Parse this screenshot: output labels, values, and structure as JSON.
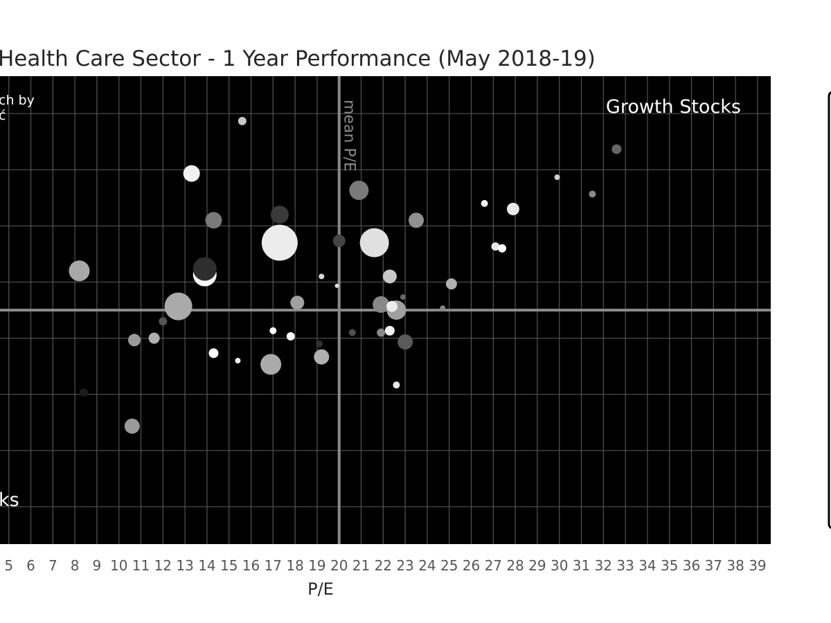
{
  "chart_data": {
    "type": "scatter",
    "title": "Health Care Sector - 1 Year Performance (May 2018-19)",
    "xlabel": "P/E",
    "ylabel": "",
    "xlim": [
      4.6,
      39.6
    ],
    "ylim": [
      -12.5,
      12.5
    ],
    "x_ticks": [
      "5",
      "6",
      "7",
      "8",
      "9",
      "10",
      "11",
      "12",
      "13",
      "14",
      "15",
      "16",
      "17",
      "18",
      "19",
      "20",
      "21",
      "22",
      "23",
      "24",
      "25",
      "26",
      "27",
      "28",
      "29",
      "30",
      "31",
      "32",
      "33",
      "34",
      "35",
      "36",
      "37",
      "38",
      "39"
    ],
    "grid": true,
    "background": "#000000",
    "grid_color": "#555555",
    "mean_line_color": "#8a8a8a",
    "mean_pe": 20.0,
    "mean_y": 0.0,
    "mean_label": "mean P/E",
    "annotations": {
      "top_right": "Growth Stocks",
      "top_left_line1": "ch by",
      "top_left_line2": "ć",
      "bottom_left": "ks"
    },
    "points": [
      {
        "x": 15.6,
        "y": 10.1,
        "r": 6,
        "shade": "#c8c8c8"
      },
      {
        "x": 32.6,
        "y": 8.6,
        "r": 7,
        "shade": "#666666"
      },
      {
        "x": 13.3,
        "y": 7.3,
        "r": 12,
        "shade": "#f2f2f2"
      },
      {
        "x": 29.9,
        "y": 7.1,
        "r": 4,
        "shade": "#d0d0d0"
      },
      {
        "x": 20.9,
        "y": 6.4,
        "r": 14,
        "shade": "#7a7a7a"
      },
      {
        "x": 31.5,
        "y": 6.2,
        "r": 5,
        "shade": "#888888"
      },
      {
        "x": 26.6,
        "y": 5.7,
        "r": 5,
        "shade": "#f0f0f0"
      },
      {
        "x": 27.9,
        "y": 5.4,
        "r": 9,
        "shade": "#e8e8e8"
      },
      {
        "x": 17.3,
        "y": 5.1,
        "r": 13,
        "shade": "#3a3a3a"
      },
      {
        "x": 14.3,
        "y": 4.8,
        "r": 12,
        "shade": "#7a7a7a"
      },
      {
        "x": 23.5,
        "y": 4.8,
        "r": 11,
        "shade": "#909090"
      },
      {
        "x": 17.3,
        "y": 3.6,
        "r": 26,
        "shade": "#ececec"
      },
      {
        "x": 21.6,
        "y": 3.6,
        "r": 21,
        "shade": "#e0e0e0"
      },
      {
        "x": 20.0,
        "y": 3.7,
        "r": 9,
        "shade": "#444444"
      },
      {
        "x": 27.1,
        "y": 3.4,
        "r": 6,
        "shade": "#e6e6e6"
      },
      {
        "x": 27.4,
        "y": 3.3,
        "r": 6,
        "shade": "#ffffff"
      },
      {
        "x": 8.2,
        "y": 2.1,
        "r": 15,
        "shade": "#a8a8a8"
      },
      {
        "x": 13.9,
        "y": 1.9,
        "r": 17,
        "shade": "#f8f8f8"
      },
      {
        "x": 13.9,
        "y": 2.2,
        "r": 17,
        "shade": "#2e2e2e"
      },
      {
        "x": 19.2,
        "y": 1.8,
        "r": 4,
        "shade": "#d8d8d8"
      },
      {
        "x": 22.3,
        "y": 1.8,
        "r": 10,
        "shade": "#c8c8c8"
      },
      {
        "x": 19.9,
        "y": 1.3,
        "r": 3,
        "shade": "#e8e8e8"
      },
      {
        "x": 25.1,
        "y": 1.4,
        "r": 8,
        "shade": "#b0b0b0"
      },
      {
        "x": 12.7,
        "y": 0.2,
        "r": 20,
        "shade": "#aaaaaa"
      },
      {
        "x": 18.1,
        "y": 0.4,
        "r": 10,
        "shade": "#a0a0a0"
      },
      {
        "x": 21.9,
        "y": 0.3,
        "r": 12,
        "shade": "#888888"
      },
      {
        "x": 22.6,
        "y": 0.0,
        "r": 14,
        "shade": "#a0a0a0"
      },
      {
        "x": 22.4,
        "y": 0.2,
        "r": 8,
        "shade": "#ececec"
      },
      {
        "x": 22.9,
        "y": 0.7,
        "r": 4,
        "shade": "#666666"
      },
      {
        "x": 24.7,
        "y": 0.1,
        "r": 4,
        "shade": "#888888"
      },
      {
        "x": 12.0,
        "y": -0.6,
        "r": 6,
        "shade": "#555555"
      },
      {
        "x": 17.0,
        "y": -1.1,
        "r": 5,
        "shade": "#ffffff"
      },
      {
        "x": 17.8,
        "y": -1.4,
        "r": 6,
        "shade": "#f8f8f8"
      },
      {
        "x": 20.6,
        "y": -1.2,
        "r": 5,
        "shade": "#505050"
      },
      {
        "x": 21.9,
        "y": -1.2,
        "r": 6,
        "shade": "#888888"
      },
      {
        "x": 22.3,
        "y": -1.1,
        "r": 7,
        "shade": "#f2f2f2"
      },
      {
        "x": 10.7,
        "y": -1.6,
        "r": 9,
        "shade": "#9a9a9a"
      },
      {
        "x": 11.6,
        "y": -1.5,
        "r": 8,
        "shade": "#b0b0b0"
      },
      {
        "x": 19.1,
        "y": -1.8,
        "r": 5,
        "shade": "#303030"
      },
      {
        "x": 23.0,
        "y": -1.7,
        "r": 11,
        "shade": "#5a5a5a"
      },
      {
        "x": 14.3,
        "y": -2.3,
        "r": 7,
        "shade": "#ffffff"
      },
      {
        "x": 15.4,
        "y": -2.7,
        "r": 4,
        "shade": "#f0f0f0"
      },
      {
        "x": 19.2,
        "y": -2.5,
        "r": 11,
        "shade": "#b0b0b0"
      },
      {
        "x": 16.9,
        "y": -2.9,
        "r": 15,
        "shade": "#aaaaaa"
      },
      {
        "x": 22.6,
        "y": -4.0,
        "r": 5,
        "shade": "#e8e8e8"
      },
      {
        "x": 8.4,
        "y": -4.4,
        "r": 6,
        "shade": "#1c1c1c"
      },
      {
        "x": 10.6,
        "y": -6.2,
        "r": 11,
        "shade": "#999999"
      }
    ]
  }
}
